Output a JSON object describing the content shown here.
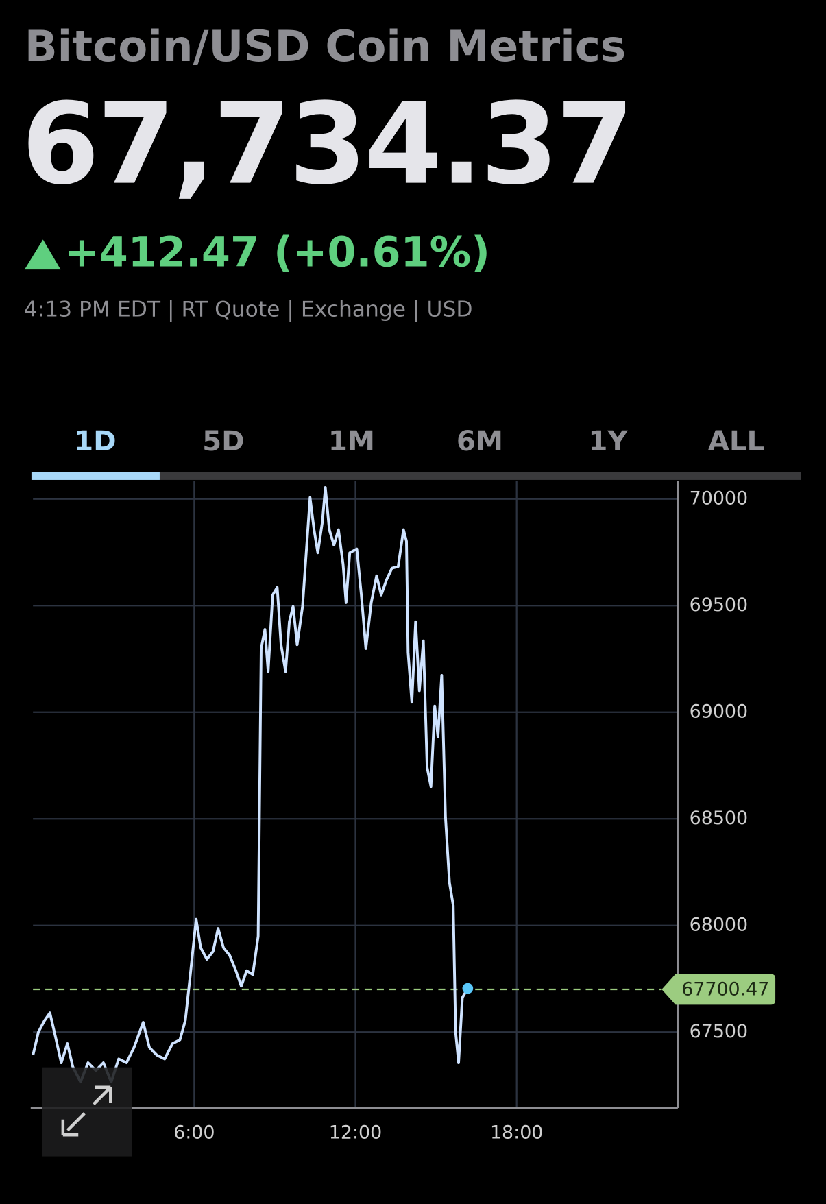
{
  "header": {
    "title": "Bitcoin/USD Coin Metrics",
    "price": "67,734.37",
    "change": "+412.47 (+0.61%)",
    "meta": "4:13 PM EDT | RT Quote | Exchange | USD"
  },
  "tabs": [
    {
      "label": "1D",
      "selected": true
    },
    {
      "label": "5D",
      "selected": false
    },
    {
      "label": "1M",
      "selected": false
    },
    {
      "label": "6M",
      "selected": false
    },
    {
      "label": "1Y",
      "selected": false
    },
    {
      "label": "ALL",
      "selected": false
    }
  ],
  "chart_data": {
    "type": "line",
    "color": "#cfe3ff",
    "x": [
      0,
      0.2,
      0.43,
      0.63,
      0.83,
      1.05,
      1.28,
      1.48,
      1.77,
      2.05,
      2.34,
      2.62,
      2.91,
      3.19,
      3.48,
      3.76,
      4.1,
      4.33,
      4.61,
      4.9,
      5.19,
      5.47,
      5.67,
      5.84,
      6.07,
      6.24,
      6.47,
      6.7,
      6.89,
      7.09,
      7.32,
      7.55,
      7.75,
      7.95,
      8.18,
      8.38,
      8.49,
      8.63,
      8.75,
      8.92,
      9.09,
      9.23,
      9.4,
      9.54,
      9.68,
      9.83,
      10.03,
      10.17,
      10.31,
      10.46,
      10.6,
      10.77,
      10.88,
      11.03,
      11.2,
      11.37,
      11.54,
      11.65,
      11.79,
      12.05,
      12.22,
      12.39,
      12.59,
      12.79,
      12.96,
      13.16,
      13.36,
      13.59,
      13.79,
      13.9,
      13.96,
      14.1,
      14.24,
      14.38,
      14.53,
      14.67,
      14.81,
      14.95,
      15.07,
      15.21,
      15.35,
      15.5,
      15.64,
      15.73,
      15.84,
      15.98,
      16.18
    ],
    "values": [
      67392,
      67500,
      67554,
      67590,
      67482,
      67356,
      67446,
      67338,
      67266,
      67356,
      67320,
      67356,
      67266,
      67374,
      67356,
      67428,
      67546,
      67428,
      67392,
      67374,
      67446,
      67464,
      67554,
      67752,
      68029,
      67896,
      67842,
      67878,
      67986,
      67896,
      67860,
      67788,
      67716,
      67788,
      67770,
      67950,
      69299,
      69388,
      69191,
      69550,
      69586,
      69317,
      69191,
      69424,
      69496,
      69317,
      69496,
      69748,
      70007,
      69856,
      69748,
      69892,
      70054,
      69856,
      69784,
      69856,
      69694,
      69514,
      69748,
      69766,
      69550,
      69299,
      69514,
      69640,
      69550,
      69622,
      69676,
      69683,
      69856,
      69802,
      69281,
      69047,
      69424,
      69101,
      69335,
      68741,
      68651,
      69029,
      68885,
      69173,
      68507,
      68201,
      68094,
      67500,
      67356,
      67662,
      67705
    ],
    "xlim": [
      0,
      24
    ],
    "xticks": [
      {
        "value": 6,
        "label": "6:00"
      },
      {
        "value": 12,
        "label": "12:00"
      },
      {
        "value": 18,
        "label": "18:00"
      }
    ],
    "ylim": [
      67144,
      70086
    ],
    "yticks": [
      67500,
      68000,
      68500,
      69000,
      69500,
      70000
    ],
    "grid": true,
    "last_price": 67700.47
  }
}
